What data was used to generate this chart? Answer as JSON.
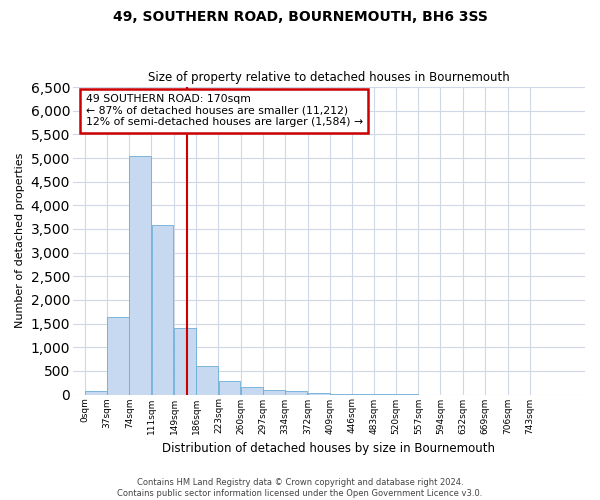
{
  "title": "49, SOUTHERN ROAD, BOURNEMOUTH, BH6 3SS",
  "subtitle": "Size of property relative to detached houses in Bournemouth",
  "xlabel": "Distribution of detached houses by size in Bournemouth",
  "ylabel": "Number of detached properties",
  "footer1": "Contains HM Land Registry data © Crown copyright and database right 2024.",
  "footer2": "Contains public sector information licensed under the Open Government Licence v3.0.",
  "annotation_line1": "49 SOUTHERN ROAD: 170sqm",
  "annotation_line2": "← 87% of detached houses are smaller (11,212)",
  "annotation_line3": "12% of semi-detached houses are larger (1,584) →",
  "property_size": 170,
  "bar_color": "#c6d9f0",
  "bar_edge_color": "#6baed6",
  "redline_color": "#cc0000",
  "annotation_box_color": "#cc0000",
  "background_color": "#ffffff",
  "grid_color": "#d0d8e8",
  "categories": [
    "0sqm",
    "37sqm",
    "74sqm",
    "111sqm",
    "149sqm",
    "186sqm",
    "223sqm",
    "260sqm",
    "297sqm",
    "334sqm",
    "372sqm",
    "409sqm",
    "446sqm",
    "483sqm",
    "520sqm",
    "557sqm",
    "594sqm",
    "632sqm",
    "669sqm",
    "706sqm",
    "743sqm"
  ],
  "values": [
    65,
    1640,
    5050,
    3575,
    1400,
    610,
    290,
    155,
    105,
    65,
    25,
    10,
    5,
    2,
    1,
    0,
    0,
    0,
    0,
    0,
    0
  ],
  "bin_edges": [
    0,
    37,
    74,
    111,
    149,
    186,
    223,
    260,
    297,
    334,
    372,
    409,
    446,
    483,
    520,
    557,
    594,
    632,
    669,
    706,
    743,
    780
  ],
  "ylim": [
    0,
    6500
  ],
  "yticks": [
    0,
    500,
    1000,
    1500,
    2000,
    2500,
    3000,
    3500,
    4000,
    4500,
    5000,
    5500,
    6000,
    6500
  ]
}
